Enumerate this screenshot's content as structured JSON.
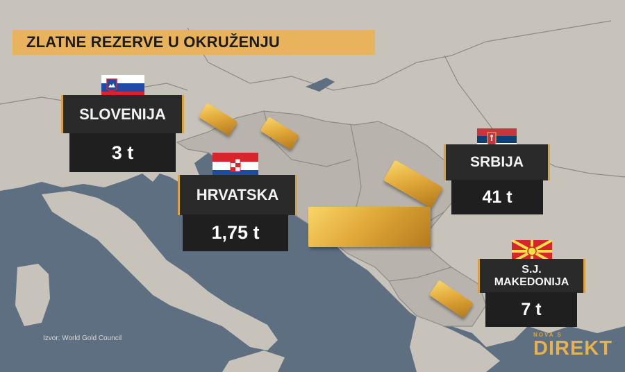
{
  "title": "ZLATNE REZERVE U OKRUŽENJU",
  "countries": [
    {
      "name": "SLOVENIJA",
      "value": "3 t"
    },
    {
      "name": "HRVATSKA",
      "value": "1,75 t"
    },
    {
      "name": "SRBIJA",
      "value": "41 t"
    },
    {
      "name_line1": "S.J.",
      "name_line2": "MAKEDONIJA",
      "value": "7 t"
    }
  ],
  "source": "Izvor: World Gold Council",
  "logo": {
    "top": "NOVA S",
    "main": "DIREKT"
  },
  "colors": {
    "accent": "#e8b35a",
    "box": "#232323",
    "land": "#c3bfb7",
    "sea": "#5d6f80",
    "gold": "#e2a93a"
  }
}
